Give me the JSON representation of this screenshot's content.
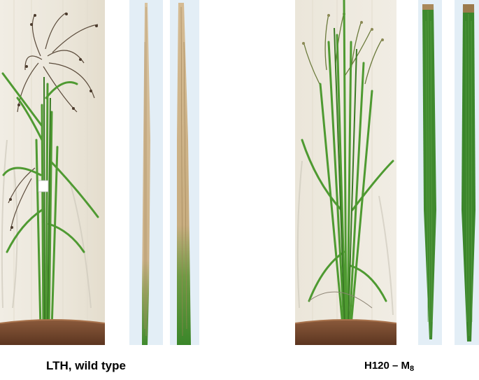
{
  "left_group": {
    "caption": "LTH, wild type",
    "plant_photo": "wild-type rice plant in pot",
    "leaf_photos": [
      "wild-type leaf 1",
      "wild-type leaf 2"
    ]
  },
  "right_group": {
    "caption_main": "H120 – M",
    "caption_sub": "8",
    "plant_photo": "H120 mutant rice plant in pot",
    "leaf_photos": [
      "mutant leaf 1",
      "mutant leaf 2"
    ]
  },
  "colors": {
    "background": "#ffffff",
    "wall": "#ede8de",
    "pot": "#7a4a30",
    "green_leaf": "#3f8a2e",
    "dry_leaf": "#d2b890",
    "leaf_backdrop": "#e6f0f7"
  }
}
